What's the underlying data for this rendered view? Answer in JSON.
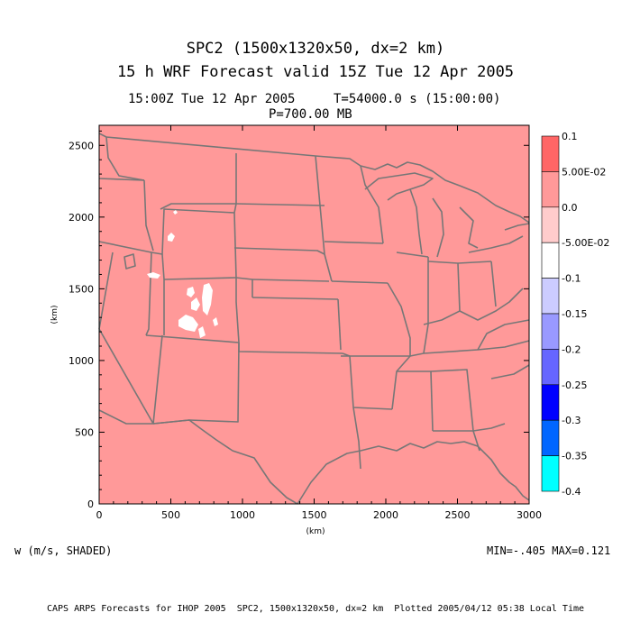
{
  "titles": {
    "line1": "SPC2 (1500x1320x50, dx=2 km)",
    "line2": "15 h WRF Forecast valid 15Z Tue 12 Apr 2005",
    "time_label": "15:00Z Tue 12 Apr 2005",
    "time_seconds": "T=54000.0 s (15:00:00)",
    "pressure_level": "P=700.00 MB"
  },
  "axes": {
    "xlabel": "(km)",
    "ylabel": "(km)",
    "xlim": [
      0,
      3000
    ],
    "ylim": [
      0,
      2640
    ],
    "x_ticks": [
      "0",
      "500",
      "1000",
      "1500",
      "2000",
      "2500",
      "3000"
    ],
    "y_ticks": [
      "0",
      "500",
      "1000",
      "1500",
      "2000",
      "2500"
    ]
  },
  "map": {
    "background_color": "#ff9999",
    "boundary_color": "#777777",
    "feature_color": "#ffffff"
  },
  "colorbar": {
    "levels": [
      "0.1",
      "5.00E-02",
      "0.0",
      "-5.00E-02",
      "-0.1",
      "-0.15",
      "-0.2",
      "-0.25",
      "-0.3",
      "-0.35",
      "-0.4"
    ],
    "colors": [
      "#ff6666",
      "#ff9999",
      "#ffcccc",
      "#ffffff",
      "#ccccff",
      "#9999ff",
      "#6666ff",
      "#0000ff",
      "#0066ff",
      "#00ffff"
    ]
  },
  "field_label": "w (m/s, SHADED)",
  "minmax": "MIN=-.405 MAX=0.121",
  "footer": "CAPS ARPS Forecasts for IHOP 2005  SPC2, 1500x1320x50, dx=2 km  Plotted 2005/04/12 05:38 Local Time"
}
